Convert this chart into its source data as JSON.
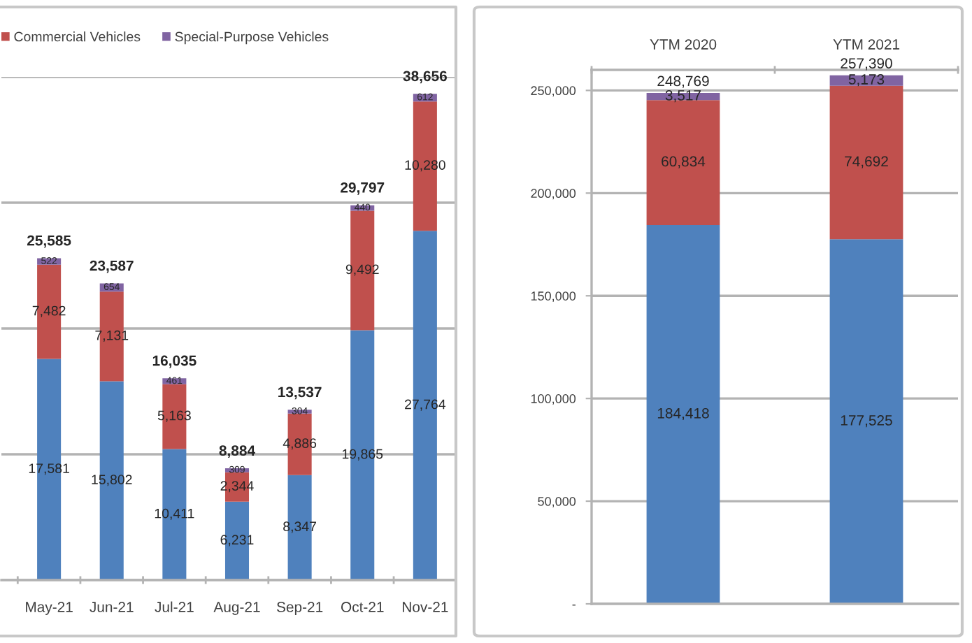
{
  "chart_data": [
    {
      "type": "bar",
      "stacked": true,
      "categories": [
        "May-21",
        "Jun-21",
        "Jul-21",
        "Aug-21",
        "Sep-21",
        "Oct-21",
        "Nov-21"
      ],
      "series": [
        {
          "color": "#4f81bd",
          "values": [
            17581,
            15802,
            10411,
            6231,
            8347,
            19865,
            27764
          ],
          "value_labels": [
            "17,581",
            "15,802",
            "10,411",
            "6,231",
            "8,347",
            "19,865",
            "27,764"
          ]
        },
        {
          "name": "Commercial Vehicles",
          "color": "#c0504d",
          "values": [
            7482,
            7131,
            5163,
            2344,
            4886,
            9492,
            10280
          ],
          "value_labels": [
            "7,482",
            "7,131",
            "5,163",
            "2,344",
            "4,886",
            "9,492",
            "10,280"
          ]
        },
        {
          "name": "Special-Purpose Vehicles",
          "color": "#8064a2",
          "values": [
            522,
            654,
            461,
            309,
            304,
            440,
            612
          ],
          "value_labels": [
            "522",
            "654",
            "461",
            "309",
            "304",
            "440",
            "612"
          ]
        }
      ],
      "totals": [
        "25,585",
        "23,587",
        "16,035",
        "8,884",
        "13,537",
        "29,797",
        "38,656"
      ],
      "ylim": [
        0,
        40000
      ],
      "yticks": [
        0,
        10000,
        20000,
        30000,
        40000
      ],
      "tick_labels": "x",
      "grid": "y",
      "legend": "top"
    },
    {
      "type": "bar",
      "stacked": true,
      "categories": [
        "YTM 2020",
        "YTM 2021"
      ],
      "series": [
        {
          "color": "#4f81bd",
          "values": [
            184418,
            177525
          ],
          "value_labels": [
            "184,418",
            "177,525"
          ]
        },
        {
          "color": "#c0504d",
          "values": [
            60834,
            74692
          ],
          "value_labels": [
            "60,834",
            "74,692"
          ]
        },
        {
          "color": "#8064a2",
          "values": [
            3517,
            5173
          ],
          "value_labels": [
            "3,517",
            "5,173"
          ]
        }
      ],
      "totals": [
        "248,769",
        "257,390"
      ],
      "ylim": [
        0,
        260000
      ],
      "yticks": [
        {
          "value": 0,
          "label": "-"
        },
        {
          "value": 50000,
          "label": "50,000"
        },
        {
          "value": 100000,
          "label": "100,000"
        },
        {
          "value": 150000,
          "label": "150,000"
        },
        {
          "value": 200000,
          "label": "200,000"
        },
        {
          "value": 250000,
          "label": "250,000"
        }
      ],
      "grid": "y"
    }
  ]
}
